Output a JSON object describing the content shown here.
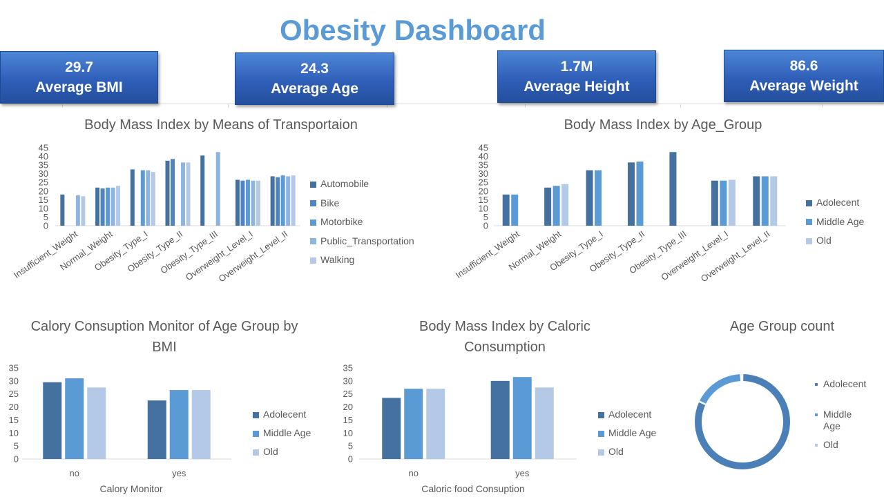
{
  "dashboard": {
    "title": "Obesity Dashboard"
  },
  "kpis": [
    {
      "value": "29.7",
      "label": "Average BMI"
    },
    {
      "value": "24.3",
      "label": "Average Age"
    },
    {
      "value": "1.7M",
      "label": "Average Height"
    },
    {
      "value": "86.6",
      "label": "Average Weight"
    }
  ],
  "colors": {
    "c1": "#44719f",
    "c2": "#4f83c1",
    "c3": "#5b9bd5",
    "c4": "#8db4e2",
    "c5": "#b4c9e7",
    "donut": "#4a7fb8"
  },
  "chart_data": [
    {
      "type": "bar",
      "title": "Body Mass Index by Means of Transportaion",
      "categories": [
        "Insufficient_Weight",
        "Normal_Weight",
        "Obesity_Type_I",
        "Obesity_Type_II",
        "Obesity_Type_III",
        "Overweight_Level_I",
        "Overweight_Level_II"
      ],
      "series": [
        {
          "name": "Automobile",
          "values": [
            18,
            22,
            32.5,
            37.5,
            40.5,
            26.5,
            28.5
          ]
        },
        {
          "name": "Bike",
          "values": [
            null,
            21.5,
            null,
            38.5,
            null,
            26,
            28
          ]
        },
        {
          "name": "Motorbike",
          "values": [
            null,
            22,
            32,
            null,
            null,
            26.5,
            29
          ]
        },
        {
          "name": "Public_Transportation",
          "values": [
            17.5,
            22,
            32,
            36.5,
            42.5,
            26,
            28.5
          ]
        },
        {
          "name": "Walking",
          "values": [
            17,
            23,
            31,
            36.5,
            null,
            26,
            29
          ]
        }
      ],
      "ylim": [
        0,
        45
      ],
      "yticks": [
        0,
        5,
        10,
        15,
        20,
        25,
        30,
        35,
        40,
        45
      ],
      "legend": "right",
      "grid": false
    },
    {
      "type": "bar",
      "title": "Body Mass Index by Age_Group",
      "categories": [
        "Insufficient_Weight",
        "Normal_Weight",
        "Obesity_Type_I",
        "Obesity_Type_II",
        "Obesity_Type_III",
        "Overweight_Level_I",
        "Overweight_Level_II"
      ],
      "series": [
        {
          "name": "Adolecent",
          "values": [
            18,
            22,
            32,
            36.5,
            42.5,
            26,
            28.5
          ]
        },
        {
          "name": "Middle Age",
          "values": [
            18,
            23,
            32,
            37,
            null,
            26,
            28.5
          ]
        },
        {
          "name": "Old",
          "values": [
            null,
            24,
            null,
            null,
            null,
            26.5,
            28.5
          ]
        }
      ],
      "ylim": [
        0,
        45
      ],
      "yticks": [
        0,
        5,
        10,
        15,
        20,
        25,
        30,
        35,
        40,
        45
      ],
      "legend": "right",
      "grid": false
    },
    {
      "type": "bar",
      "title": "Calory Consuption Monitor of Age Group by BMI",
      "xlabel": "Calory Monitor",
      "categories": [
        "no",
        "yes"
      ],
      "series": [
        {
          "name": "Adolecent",
          "values": [
            29.5,
            22.5
          ]
        },
        {
          "name": "Middle Age",
          "values": [
            31,
            26.5
          ]
        },
        {
          "name": "Old",
          "values": [
            27.5,
            26.5
          ]
        }
      ],
      "ylim": [
        0,
        35
      ],
      "yticks": [
        0,
        5,
        10,
        15,
        20,
        25,
        30,
        35
      ],
      "legend": "right",
      "grid": false
    },
    {
      "type": "bar",
      "title": "Body  Mass Index by Caloric Consumption",
      "xlabel": "Caloric food Consuption",
      "categories": [
        "no",
        "yes"
      ],
      "series": [
        {
          "name": "Adolecent",
          "values": [
            23.5,
            30
          ]
        },
        {
          "name": "Middle Age",
          "values": [
            27,
            31.5
          ]
        },
        {
          "name": "Old",
          "values": [
            27,
            27.5
          ]
        }
      ],
      "ylim": [
        0,
        35
      ],
      "yticks": [
        0,
        5,
        10,
        15,
        20,
        25,
        30,
        35
      ],
      "legend": "right",
      "grid": false
    },
    {
      "type": "pie",
      "title": "Age Group count",
      "categories": [
        "Adolecent",
        "Middle Age",
        "Old"
      ],
      "values": [
        82,
        17.5,
        0.5
      ],
      "legend": "right"
    }
  ]
}
